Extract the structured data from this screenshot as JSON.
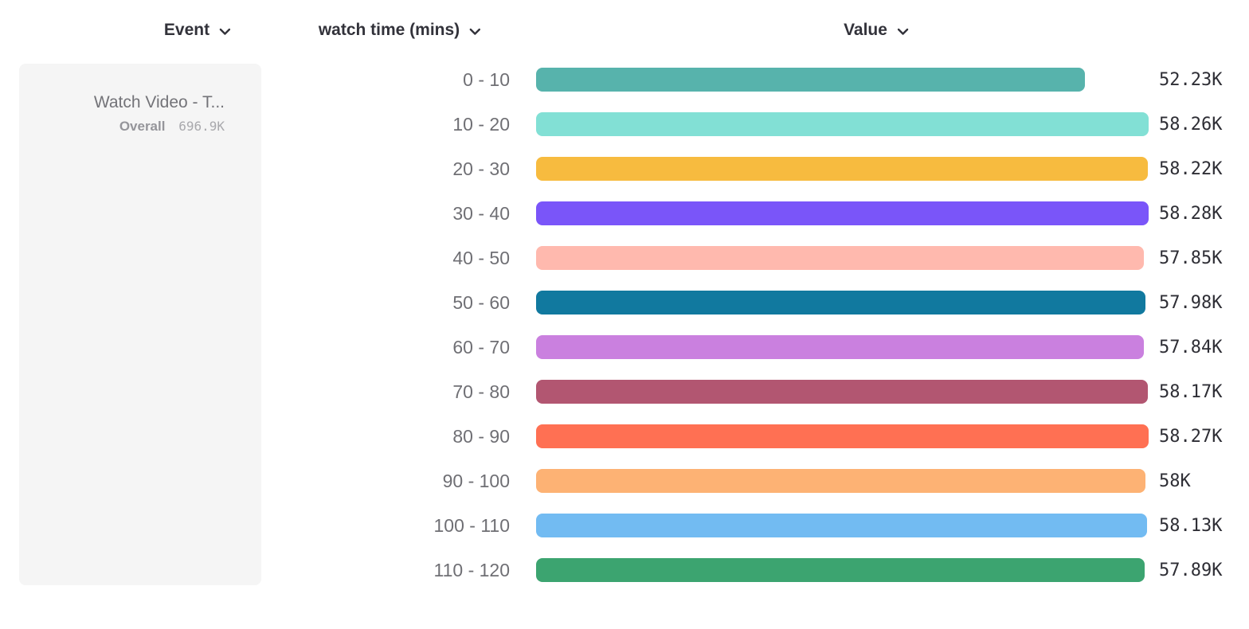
{
  "header": {
    "columns": [
      {
        "label": "Event"
      },
      {
        "label": "watch time (mins)"
      },
      {
        "label": "Value"
      }
    ]
  },
  "event_panel": {
    "title": "Watch Video - T...",
    "overall_label": "Overall",
    "overall_value": "696.9K"
  },
  "chart_data": {
    "type": "bar",
    "orientation": "horizontal",
    "title": "",
    "xlabel": "Value",
    "ylabel": "watch time (mins)",
    "categories": [
      "0 - 10",
      "10 - 20",
      "20 - 30",
      "30 - 40",
      "40 - 50",
      "50 - 60",
      "60 - 70",
      "70 - 80",
      "80 - 90",
      "90 - 100",
      "100 - 110",
      "110 - 120"
    ],
    "values": [
      52230,
      58260,
      58220,
      58280,
      57850,
      57980,
      57840,
      58170,
      58270,
      58000,
      58130,
      57890
    ],
    "value_labels": [
      "52.23K",
      "58.26K",
      "58.22K",
      "58.28K",
      "57.85K",
      "57.98K",
      "57.84K",
      "58.17K",
      "58.27K",
      "58K",
      "58.13K",
      "57.89K"
    ],
    "bar_colors": [
      "#57b3ac",
      "#82e0d5",
      "#f7bb3f",
      "#7a55f9",
      "#ffb9ae",
      "#11799f",
      "#ca80df",
      "#b25671",
      "#ff7053",
      "#fdb274",
      "#72bbf2",
      "#3ca470"
    ],
    "xlim": [
      0,
      58280
    ],
    "grid": false,
    "legend": false
  },
  "colors": {
    "panel_bg": "#f5f5f5",
    "header_text": "#32323a",
    "bucket_label_text": "#6f6f74",
    "value_label_text": "#2e2e35",
    "event_title_text": "#737378",
    "overall_label_text": "#95959a",
    "overall_value_text": "#a9a9ad"
  },
  "icons": {
    "chevron_down": "chevron-down-icon"
  }
}
